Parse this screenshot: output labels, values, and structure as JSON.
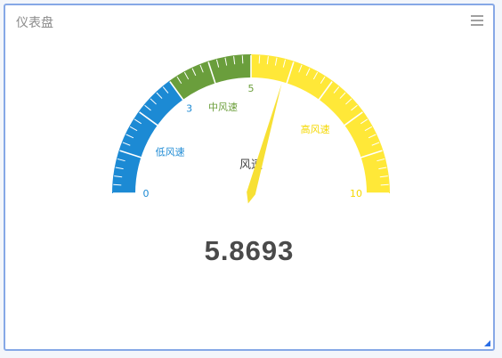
{
  "panel": {
    "title": "仪表盘",
    "menu_icon": "menu-icon",
    "resize_icon": "resize-handle-icon"
  },
  "gauge": {
    "name": "风速",
    "min": 0,
    "max": 10,
    "value": 5.8693,
    "value_text": "5.8693",
    "tick_labels": [
      {
        "value": 0,
        "text": "0",
        "color": "#1c8ad4"
      },
      {
        "value": 3,
        "text": "3",
        "color": "#1c8ad4"
      },
      {
        "value": 5,
        "text": "5",
        "color": "#6b9e3a"
      },
      {
        "value": 10,
        "text": "10",
        "color": "#f5d800"
      }
    ],
    "bands": [
      {
        "from": 0,
        "to": 3,
        "label": "低风速",
        "color": "#1c8ad4"
      },
      {
        "from": 3,
        "to": 5,
        "label": "中风速",
        "color": "#6a9e3c"
      },
      {
        "from": 5,
        "to": 10,
        "label": "高风速",
        "color": "#ffe838"
      }
    ],
    "band_label_colors": [
      "#1c8ad4",
      "#6b9e3a",
      "#f5d800"
    ],
    "pointer_color": "#f7e034"
  }
}
